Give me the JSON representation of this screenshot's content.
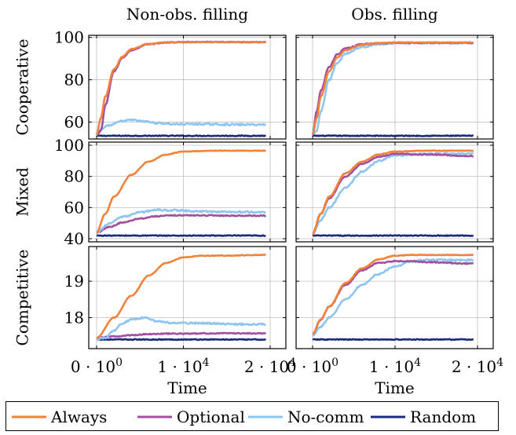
{
  "chart_data": {
    "type": "line",
    "column_titles": [
      "Non-obs. filling",
      "Obs. filling"
    ],
    "row_labels": [
      "Cooperative",
      "Mixed",
      "Competitive"
    ],
    "xlabel": "Time",
    "xlim": [
      0,
      20000
    ],
    "x_ticks": [
      0,
      10000,
      20000
    ],
    "x_tick_labels": [
      [
        "0 · 10",
        "0"
      ],
      [
        "1 · 10",
        "4"
      ],
      [
        "2 · 10",
        "4"
      ]
    ],
    "grid": true,
    "legend_position": "bottom",
    "colors": {
      "Always": "#f0823c",
      "Optional": "#a24fa0",
      "No-comm": "#8ec4f0",
      "Random": "#1c2a7a"
    },
    "legend": [
      {
        "name": "Always",
        "color": "#f0823c"
      },
      {
        "name": "Optional",
        "color": "#a24fa0"
      },
      {
        "name": "No-comm",
        "color": "#8ec4f0"
      },
      {
        "name": "Random",
        "color": "#1c2a7a"
      }
    ],
    "panels": [
      {
        "row": "Cooperative",
        "column": "Non-obs. filling",
        "ylim": [
          52,
          101
        ],
        "y_ticks": [
          60,
          80,
          100
        ],
        "series": [
          {
            "name": "Random",
            "x": [
              0,
              5000,
              10000,
              15000,
              19500
            ],
            "values": [
              53.5,
              53.5,
              53.5,
              53.5,
              53.5
            ]
          },
          {
            "name": "No-comm",
            "x": [
              0,
              500,
              1500,
              3000,
              4000,
              5500,
              7000,
              9000,
              12000,
              16000,
              19500
            ],
            "values": [
              54,
              56.5,
              58.5,
              60.5,
              61,
              60.3,
              59.5,
              59,
              59,
              58.8,
              58.8
            ]
          },
          {
            "name": "Optional",
            "x": [
              0,
              500,
              1000,
              2000,
              3000,
              4000,
              6000,
              8000,
              10000,
              14000,
              19500
            ],
            "values": [
              54,
              56,
              68,
              84,
              90.5,
              94,
              96.8,
              97.6,
              97.8,
              97.8,
              97.8
            ]
          },
          {
            "name": "Always",
            "x": [
              0,
              500,
              1000,
              2000,
              3000,
              4000,
              6000,
              8000,
              10000,
              14000,
              19500
            ],
            "values": [
              54,
              62,
              72,
              85,
              91,
              94.5,
              97,
              97.7,
              97.8,
              97.8,
              97.8
            ]
          }
        ]
      },
      {
        "row": "Cooperative",
        "column": "Obs. filling",
        "ylim": [
          52,
          101
        ],
        "y_ticks": [
          60,
          80,
          100
        ],
        "series": [
          {
            "name": "Random",
            "x": [
              0,
              5000,
              10000,
              15000,
              19500
            ],
            "values": [
              53.5,
              53.5,
              53.5,
              53.5,
              53.5
            ]
          },
          {
            "name": "No-comm",
            "x": [
              0,
              500,
              1000,
              2000,
              3000,
              4000,
              6000,
              8000,
              10000,
              14000,
              19500
            ],
            "values": [
              54,
              56,
              65,
              80,
              88,
              92.5,
              95.5,
              96.8,
              97.3,
              97.4,
              97.4
            ]
          },
          {
            "name": "Optional",
            "x": [
              0,
              500,
              1000,
              2000,
              3000,
              4000,
              6000,
              8000,
              10000,
              14000,
              19500
            ],
            "values": [
              54,
              65,
              75,
              86,
              92,
              94.8,
              96.8,
              97.3,
              97.5,
              97.5,
              97.5
            ]
          },
          {
            "name": "Always",
            "x": [
              0,
              500,
              1000,
              2000,
              3000,
              4000,
              6000,
              8000,
              10000,
              14000,
              19500
            ],
            "values": [
              54,
              62,
              72,
              84,
              90.5,
              94,
              96.5,
              97.3,
              97.6,
              97.6,
              97.6
            ]
          }
        ]
      },
      {
        "row": "Mixed",
        "column": "Non-obs. filling",
        "ylim": [
          38,
          102
        ],
        "y_ticks": [
          40,
          60,
          80,
          100
        ],
        "series": [
          {
            "name": "Random",
            "x": [
              0,
              5000,
              10000,
              15000,
              19500
            ],
            "values": [
              42,
              42,
              42,
              42,
              42
            ]
          },
          {
            "name": "Optional",
            "x": [
              0,
              1500,
              3000,
              5000,
              7000,
              9000,
              12000,
              16000,
              19500
            ],
            "values": [
              44,
              47.5,
              50.5,
              53,
              54.5,
              55,
              55,
              54.8,
              54.8
            ]
          },
          {
            "name": "No-comm",
            "x": [
              0,
              1500,
              3000,
              5000,
              7000,
              9000,
              12000,
              16000,
              19500
            ],
            "values": [
              44,
              50,
              54,
              57,
              58.5,
              58.2,
              57.5,
              57.2,
              57
            ]
          },
          {
            "name": "Always",
            "x": [
              0,
              1000,
              2000,
              4000,
              6000,
              8000,
              10000,
              14000,
              19500
            ],
            "values": [
              44,
              56,
              67,
              81,
              89.5,
              94,
              96,
              96.5,
              96.5
            ]
          }
        ]
      },
      {
        "row": "Mixed",
        "column": "Obs. filling",
        "ylim": [
          38,
          102
        ],
        "y_ticks": [
          40,
          60,
          80,
          100
        ],
        "series": [
          {
            "name": "Random",
            "x": [
              0,
              5000,
              10000,
              15000,
              19500
            ],
            "values": [
              42,
              42,
              42,
              42,
              42
            ]
          },
          {
            "name": "No-comm",
            "x": [
              0,
              1000,
              2000,
              4000,
              6000,
              8000,
              10000,
              14000,
              19500
            ],
            "values": [
              43,
              52,
              60,
              73,
              83,
              90,
              93.5,
              94.5,
              94.5
            ]
          },
          {
            "name": "Optional",
            "x": [
              0,
              1000,
              2000,
              4000,
              6000,
              8000,
              10000,
              14000,
              19500
            ],
            "values": [
              43,
              56,
              66,
              80,
              88,
              92.5,
              94.5,
              94,
              93
            ]
          },
          {
            "name": "Always",
            "x": [
              0,
              1000,
              2000,
              4000,
              6000,
              8000,
              10000,
              14000,
              19500
            ],
            "values": [
              43,
              56,
              67,
              82,
              89.5,
              94,
              96,
              96.5,
              96.5
            ]
          }
        ]
      },
      {
        "row": "Competitive",
        "column": "Non-obs. filling",
        "ylim": [
          17.15,
          19.95
        ],
        "y_ticks": [
          18,
          19
        ],
        "series": [
          {
            "name": "Random",
            "x": [
              0,
              5000,
              10000,
              15000,
              19500
            ],
            "values": [
              17.4,
              17.4,
              17.4,
              17.4,
              17.4
            ]
          },
          {
            "name": "Optional",
            "x": [
              0,
              2000,
              4000,
              6000,
              8000,
              10000,
              14000,
              19500
            ],
            "values": [
              17.45,
              17.48,
              17.52,
              17.55,
              17.56,
              17.56,
              17.57,
              17.57
            ]
          },
          {
            "name": "No-comm",
            "x": [
              0,
              1000,
              2000,
              3000,
              4000,
              5500,
              7000,
              9000,
              12000,
              16000,
              19500
            ],
            "values": [
              17.4,
              17.45,
              17.65,
              17.85,
              17.95,
              18.0,
              17.9,
              17.85,
              17.85,
              17.82,
              17.82
            ]
          },
          {
            "name": "Always",
            "x": [
              0,
              2000,
              4000,
              6000,
              8000,
              10000,
              12000,
              14000,
              19500
            ],
            "values": [
              17.45,
              18.0,
              18.6,
              19.15,
              19.5,
              19.65,
              19.7,
              19.7,
              19.72
            ]
          }
        ]
      },
      {
        "row": "Competitive",
        "column": "Obs. filling",
        "ylim": [
          17.15,
          19.95
        ],
        "y_ticks": [
          18,
          19
        ],
        "series": [
          {
            "name": "Random",
            "x": [
              0,
              5000,
              10000,
              15000,
              19500
            ],
            "values": [
              17.4,
              17.4,
              17.4,
              17.4,
              17.4
            ]
          },
          {
            "name": "No-comm",
            "x": [
              0,
              1000,
              2000,
              4000,
              6000,
              8000,
              10000,
              12000,
              14000,
              19500
            ],
            "values": [
              17.5,
              17.75,
              18.0,
              18.5,
              18.9,
              19.2,
              19.4,
              19.55,
              19.58,
              19.58
            ]
          },
          {
            "name": "Optional",
            "x": [
              0,
              1000,
              2000,
              4000,
              6000,
              8000,
              10000,
              12000,
              14000,
              19500
            ],
            "values": [
              17.55,
              17.95,
              18.3,
              18.9,
              19.3,
              19.5,
              19.55,
              19.55,
              19.52,
              19.48
            ]
          },
          {
            "name": "Always",
            "x": [
              0,
              1000,
              2000,
              4000,
              6000,
              8000,
              10000,
              12000,
              14000,
              19500
            ],
            "values": [
              17.55,
              17.95,
              18.3,
              18.95,
              19.35,
              19.6,
              19.7,
              19.72,
              19.72,
              19.72
            ]
          }
        ]
      }
    ]
  }
}
